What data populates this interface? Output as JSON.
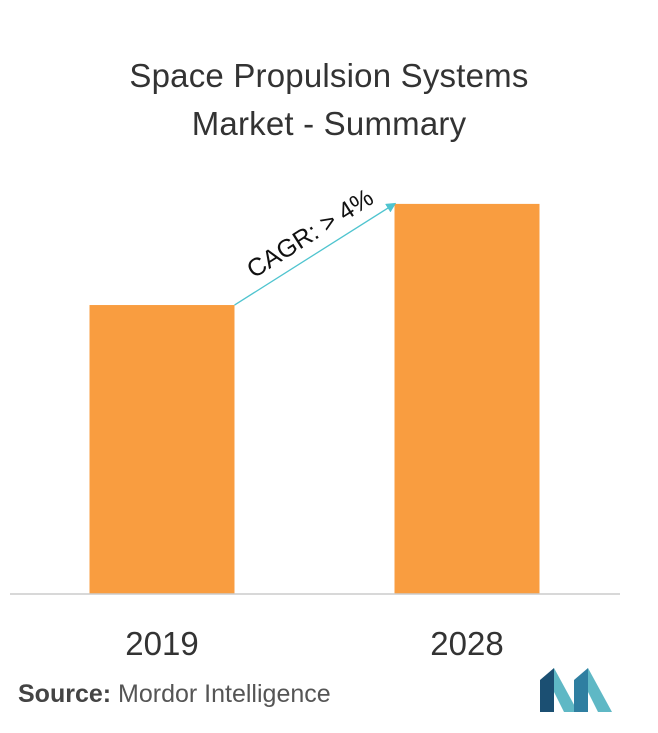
{
  "chart_data": {
    "type": "bar",
    "title_lines": [
      "Space Propulsion Systems",
      "Market - Summary"
    ],
    "categories": [
      "2019",
      "2028"
    ],
    "values": [
      1.0,
      1.35
    ],
    "ylim": [
      0,
      1.45
    ],
    "bar_color": "#f99d40",
    "axis_color": "#cccccc",
    "annotation": {
      "text": "CAGR: > 4%",
      "from": "2019",
      "to": "2028",
      "color": "#4fc4cf"
    },
    "grid": false,
    "legend": "none"
  },
  "source": {
    "label": "Source:",
    "text": " Mordor Intelligence"
  },
  "logo": {
    "icon": "mordor-intelligence-logo-icon",
    "colors": [
      "#1b4f72",
      "#5fb8c5"
    ]
  }
}
